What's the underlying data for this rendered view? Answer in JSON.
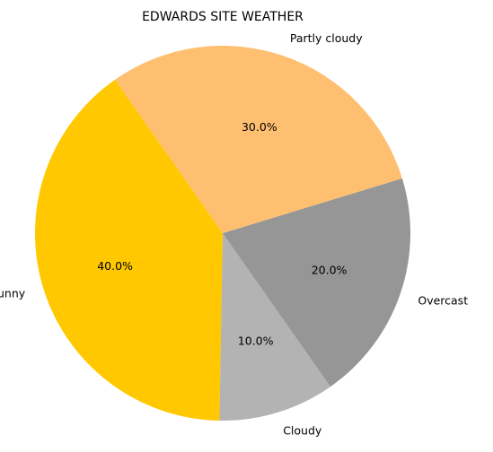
{
  "chart_data": {
    "type": "pie",
    "title": "EDWARDS SITE WEATHER",
    "categories": [
      "Sunny",
      "Cloudy",
      "Overcast",
      "Partly cloudy"
    ],
    "values": [
      40,
      10,
      20,
      30
    ],
    "value_labels": [
      "40.0%",
      "10.0%",
      "20.0%",
      "30.0%"
    ],
    "colors": [
      "#ffc800",
      "#b3b3b3",
      "#969696",
      "#ffbf70"
    ],
    "legend": "none"
  }
}
